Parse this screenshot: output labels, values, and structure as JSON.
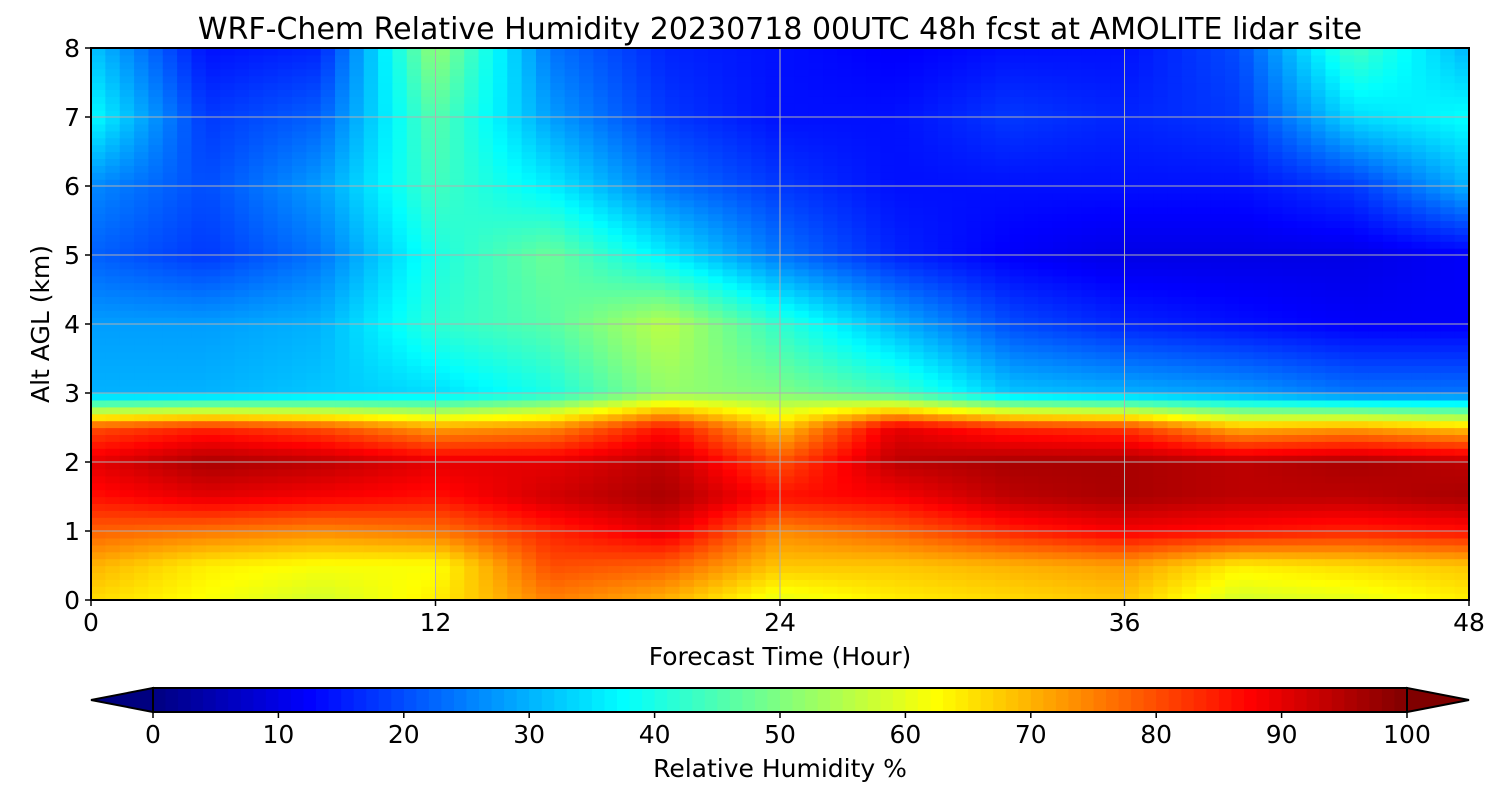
{
  "chart_data": {
    "type": "heatmap",
    "title": "WRF-Chem Relative Humidity 20230718 00UTC 48h fcst at AMOLITE lidar site",
    "xlabel": "Forecast Time (Hour)",
    "ylabel": "Alt AGL (km)",
    "xlim": [
      0,
      48
    ],
    "ylim": [
      0,
      8
    ],
    "x_ticks": [
      "0",
      "12",
      "24",
      "36",
      "48"
    ],
    "y_ticks": [
      "0",
      "1",
      "2",
      "3",
      "4",
      "5",
      "6",
      "7",
      "8"
    ],
    "grid": true,
    "colormap": "jet",
    "colorbar": {
      "label": "Relative Humidity %",
      "ticks": [
        "0",
        "10",
        "20",
        "30",
        "40",
        "50",
        "60",
        "70",
        "80",
        "90",
        "100"
      ],
      "range": [
        0,
        100
      ],
      "extend": "both",
      "orientation": "horizontal"
    },
    "times_hour": [
      0,
      4,
      8,
      12,
      16,
      20,
      24,
      28,
      32,
      36,
      40,
      44,
      48
    ],
    "altitudes_km": [
      0,
      0.5,
      1,
      1.5,
      2,
      2.5,
      3,
      4,
      5,
      6,
      7,
      8
    ],
    "rh_percent": [
      [
        66,
        62,
        58,
        64,
        75,
        70,
        60,
        64,
        66,
        68,
        58,
        60,
        64
      ],
      [
        70,
        64,
        62,
        62,
        80,
        78,
        68,
        68,
        70,
        72,
        64,
        66,
        68
      ],
      [
        78,
        76,
        74,
        76,
        84,
        90,
        74,
        78,
        84,
        88,
        86,
        84,
        86
      ],
      [
        86,
        90,
        88,
        86,
        92,
        96,
        86,
        88,
        94,
        96,
        94,
        94,
        96
      ],
      [
        90,
        96,
        94,
        90,
        90,
        94,
        80,
        94,
        96,
        96,
        94,
        96,
        94
      ],
      [
        80,
        84,
        80,
        72,
        74,
        86,
        68,
        90,
        84,
        82,
        70,
        72,
        68
      ],
      [
        30,
        30,
        32,
        34,
        40,
        52,
        50,
        44,
        32,
        30,
        28,
        24,
        24
      ],
      [
        28,
        28,
        30,
        42,
        46,
        56,
        42,
        30,
        20,
        16,
        14,
        12,
        12
      ],
      [
        22,
        18,
        24,
        40,
        48,
        36,
        24,
        16,
        12,
        10,
        10,
        10,
        12
      ],
      [
        26,
        20,
        28,
        44,
        36,
        24,
        18,
        14,
        14,
        14,
        14,
        18,
        30
      ],
      [
        38,
        18,
        22,
        46,
        28,
        18,
        14,
        14,
        18,
        16,
        18,
        34,
        38
      ],
      [
        32,
        14,
        16,
        52,
        24,
        16,
        14,
        12,
        14,
        14,
        20,
        44,
        30
      ]
    ]
  }
}
